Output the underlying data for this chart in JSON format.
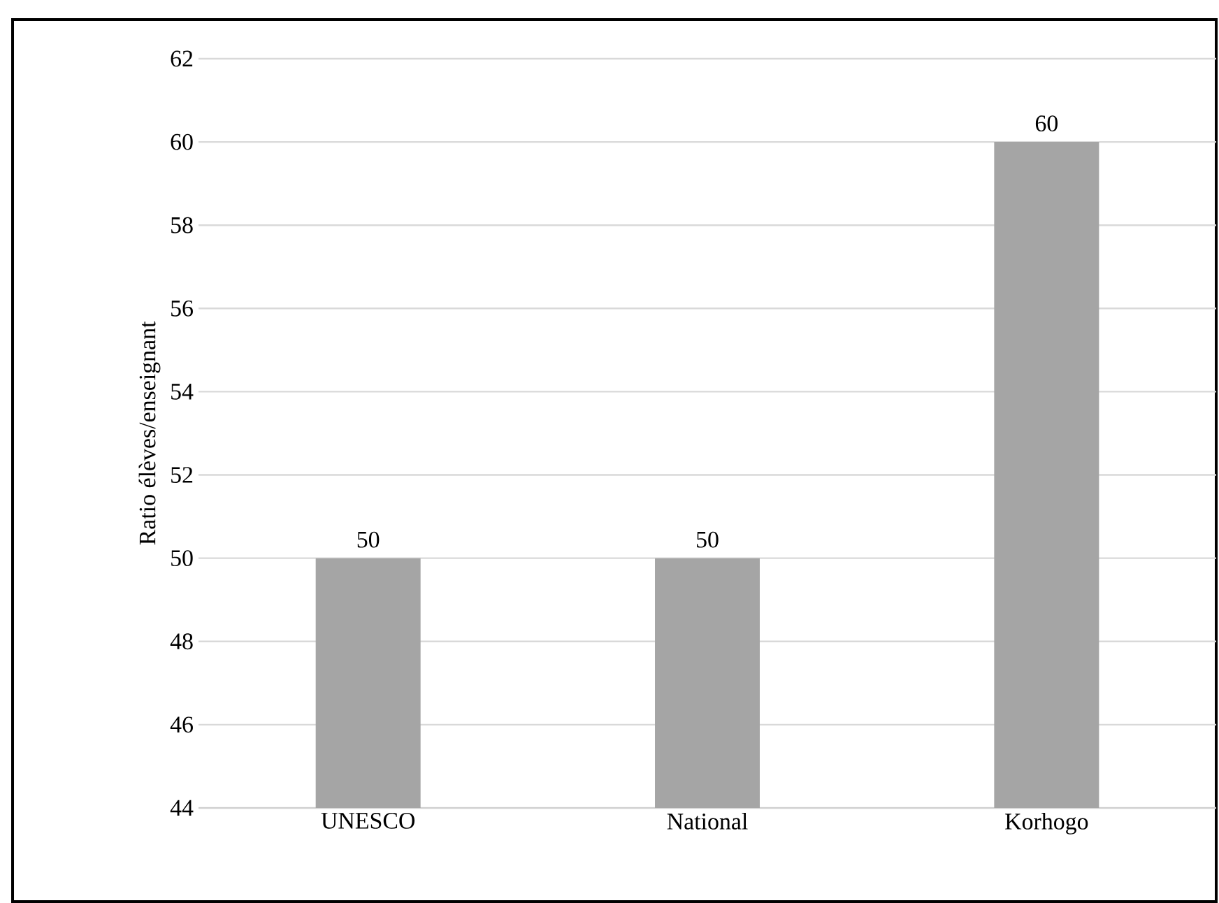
{
  "chart_data": {
    "type": "bar",
    "ylabel": "Ratio élèves/enseignant",
    "categories": [
      "UNESCO",
      "National",
      "Korhogo"
    ],
    "values": [
      50,
      50,
      60
    ],
    "color": "#a5a5a5",
    "ylim": [
      44,
      62
    ],
    "yticks": [
      44,
      46,
      48,
      50,
      52,
      54,
      56,
      58,
      60,
      62
    ],
    "grid": "y",
    "data_labels": true
  }
}
